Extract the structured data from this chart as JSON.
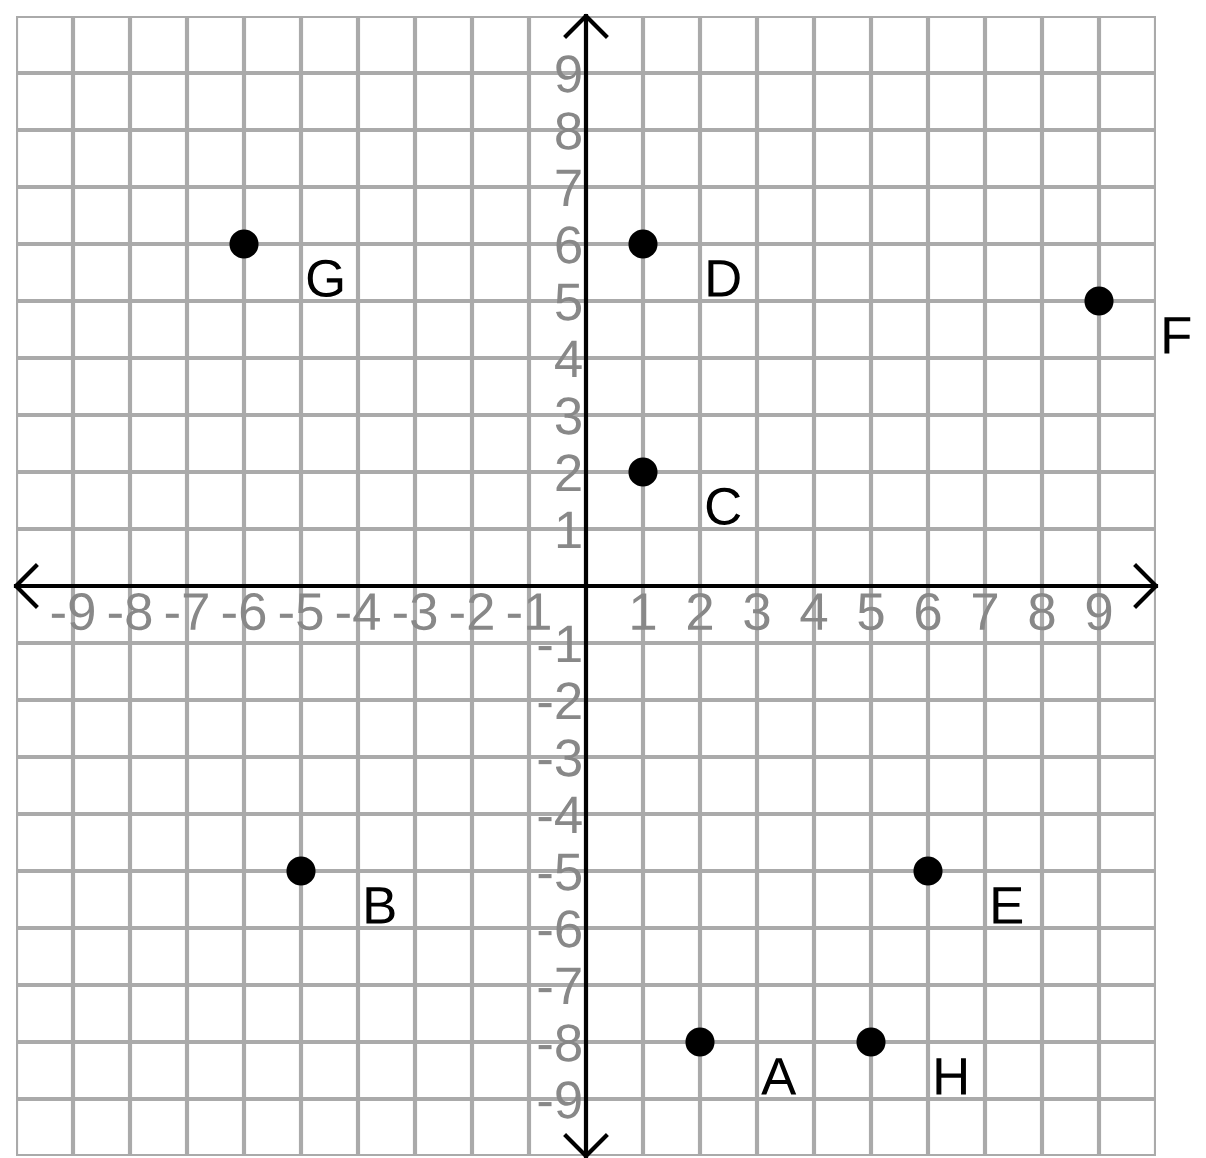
{
  "chart_data": {
    "type": "scatter",
    "x": [
      -6,
      1,
      9,
      1,
      -5,
      6,
      2,
      5
    ],
    "values": [
      6,
      6,
      5,
      2,
      -5,
      -5,
      -8,
      -8
    ],
    "color": "#000000",
    "marker": "circle",
    "annotations": [
      {
        "text": "G",
        "x": -6,
        "y": 6
      },
      {
        "text": "D",
        "x": 1,
        "y": 6
      },
      {
        "text": "F",
        "x": 9,
        "y": 5
      },
      {
        "text": "C",
        "x": 1,
        "y": 2
      },
      {
        "text": "B",
        "x": -5,
        "y": -5
      },
      {
        "text": "E",
        "x": 6,
        "y": -5
      },
      {
        "text": "A",
        "x": 2,
        "y": -8
      },
      {
        "text": "H",
        "x": 5,
        "y": -8
      }
    ],
    "xlim": [
      -10,
      10
    ],
    "ylim": [
      -10,
      10
    ],
    "xticks": [
      -9,
      -8,
      -7,
      -6,
      -5,
      -4,
      -3,
      -2,
      -1,
      1,
      2,
      3,
      4,
      5,
      6,
      7,
      8,
      9
    ],
    "yticks": [
      -9,
      -8,
      -7,
      -6,
      -5,
      -4,
      -3,
      -2,
      -1,
      1,
      2,
      3,
      4,
      5,
      6,
      7,
      8,
      9
    ],
    "grid": true
  }
}
